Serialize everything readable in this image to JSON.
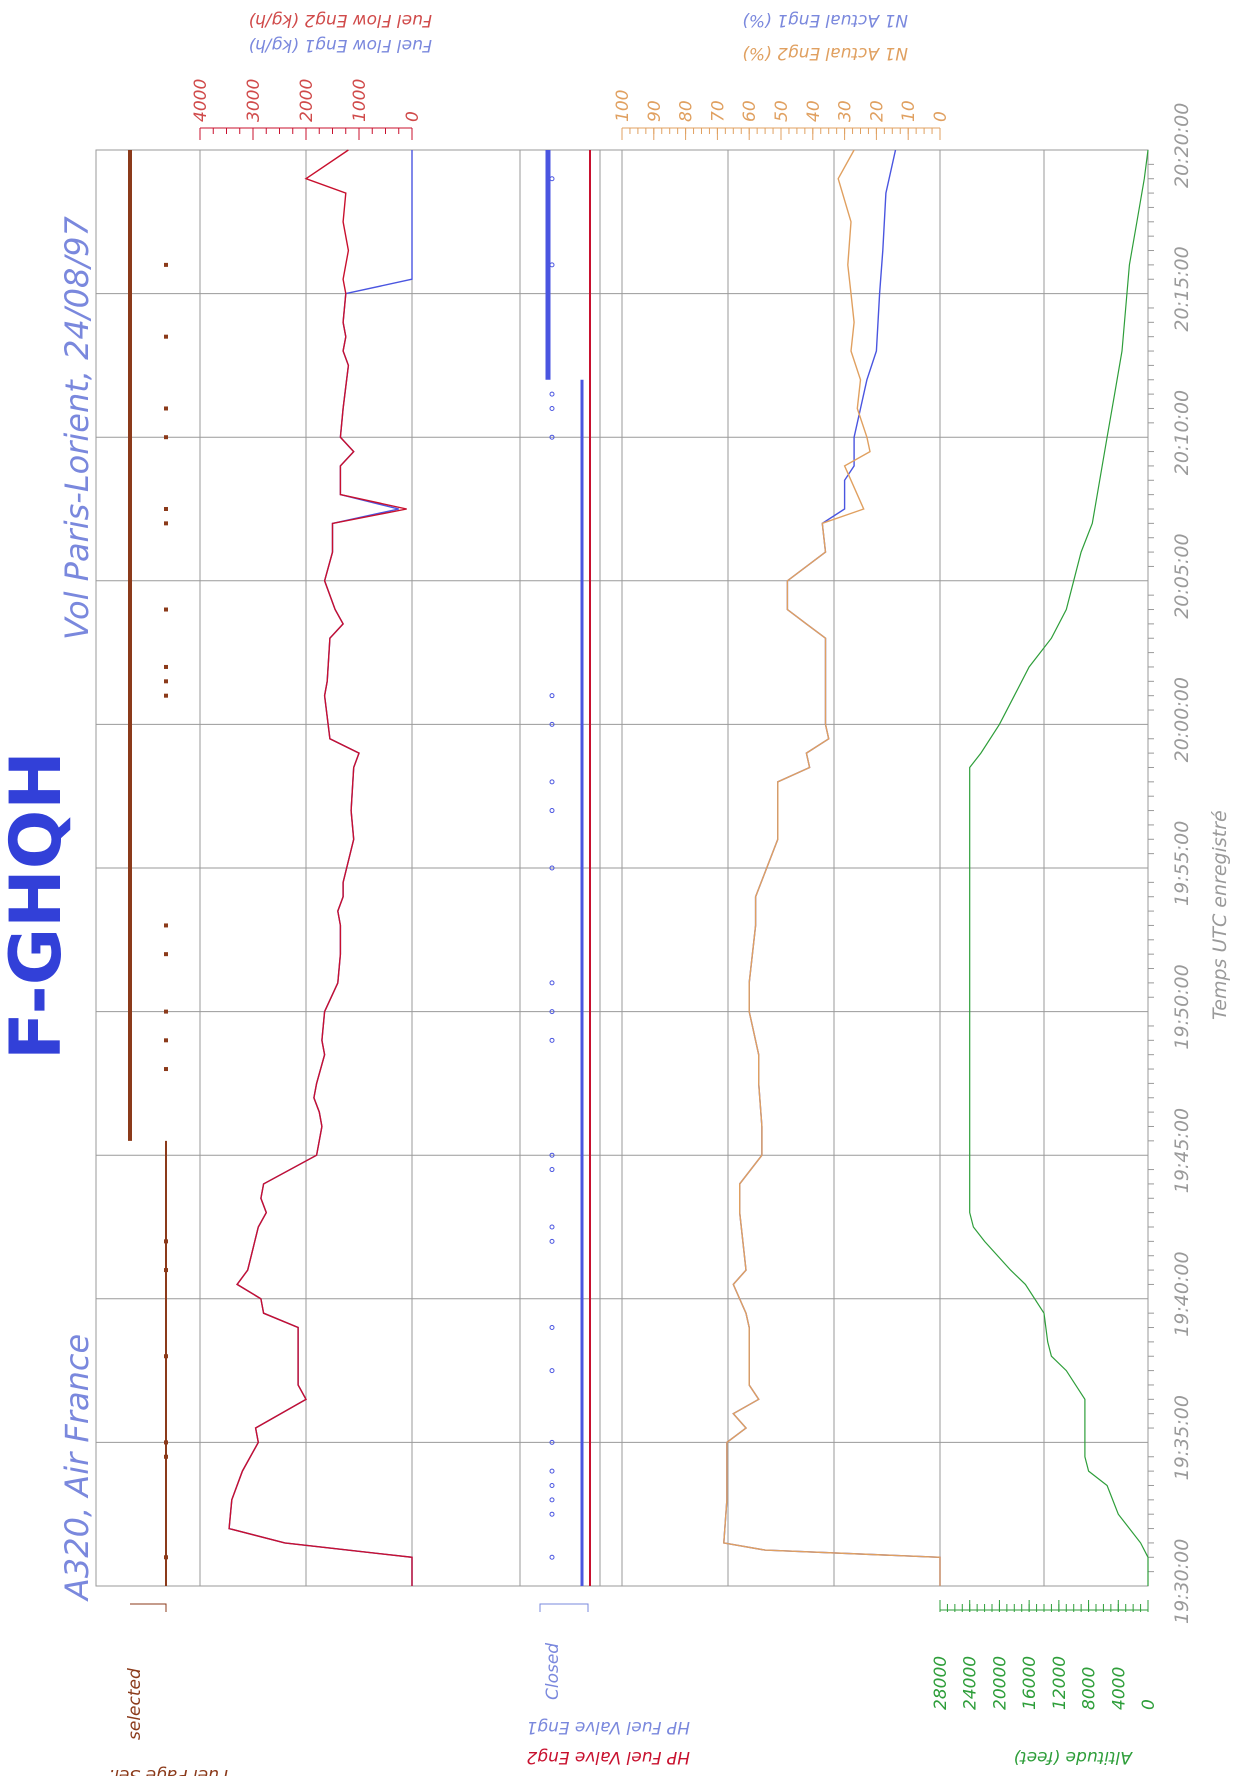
{
  "header": {
    "registration": "F-GHQH",
    "aircraft": "A320, Air France",
    "flight": "Vol Paris-Lorient, 24/08/97"
  },
  "colors": {
    "blue": "#4a55e0",
    "red": "#c8102e",
    "orange": "#e0a060",
    "brown": "#8b3a1a",
    "green": "#2e9e3a",
    "grid": "#9a9a9a",
    "axis_text_blue": "#7a88dd",
    "axis_text_red": "#d04a4a"
  },
  "chart_data": {
    "type": "line",
    "x_axis": {
      "label": "Temps UTC enregistré",
      "ticks": [
        "19:30:00",
        "19:35:00",
        "19:40:00",
        "19:45:00",
        "19:50:00",
        "19:55:00",
        "20:00:00",
        "20:05:00",
        "20:10:00",
        "20:15:00",
        "20:20:00"
      ]
    },
    "panels": {
      "fuel_page": {
        "labels": [
          "Fuel Page Sel.",
          "selected"
        ]
      },
      "fuel_flow": {
        "labels": [
          "Fuel Flow Eng1 (kg/h)",
          "Fuel Flow Eng2 (kg/h)"
        ],
        "ticks": [
          "4000",
          "3000",
          "2000",
          "1000",
          "0"
        ],
        "ylim": [
          0,
          4000
        ]
      },
      "hp_valve": {
        "labels": [
          "HP Fuel Valve Eng1",
          "HP Fuel Valve Eng2"
        ],
        "state_label": "Closed"
      },
      "n1": {
        "labels": [
          "N1 Actual Eng1 (%)",
          "N1 Actual Eng2 (%)"
        ],
        "ticks": [
          "100",
          "90",
          "80",
          "70",
          "60",
          "50",
          "40",
          "30",
          "20",
          "10",
          "0"
        ],
        "ylim": [
          0,
          100
        ]
      },
      "altitude": {
        "label": "Altitude (feet)",
        "ticks": [
          "28000",
          "24000",
          "20000",
          "16000",
          "12000",
          "8000",
          "4000",
          "0"
        ],
        "ylim": [
          0,
          28000
        ]
      }
    },
    "series": {
      "fuel_flow_eng1": [
        [
          0,
          0
        ],
        [
          2,
          0
        ],
        [
          3,
          2400
        ],
        [
          4,
          3450
        ],
        [
          6,
          3400
        ],
        [
          8,
          3200
        ],
        [
          10,
          2900
        ],
        [
          11,
          2950
        ],
        [
          13,
          2000
        ],
        [
          14,
          2150
        ],
        [
          18,
          2150
        ],
        [
          19,
          2800
        ],
        [
          20,
          2850
        ],
        [
          21,
          3300
        ],
        [
          22,
          3100
        ],
        [
          25,
          2900
        ],
        [
          26,
          2750
        ],
        [
          27,
          2850
        ],
        [
          28,
          2800
        ],
        [
          30,
          1800
        ],
        [
          32,
          1700
        ],
        [
          33,
          1750
        ],
        [
          34,
          1850
        ],
        [
          35,
          1800
        ],
        [
          37,
          1650
        ],
        [
          38,
          1700
        ],
        [
          40,
          1650
        ],
        [
          42,
          1400
        ],
        [
          44,
          1350
        ],
        [
          46,
          1350
        ],
        [
          47,
          1400
        ],
        [
          48,
          1300
        ],
        [
          49,
          1300
        ],
        [
          52,
          1100
        ],
        [
          54,
          1150
        ],
        [
          57,
          1100
        ],
        [
          58,
          1000
        ],
        [
          59,
          1550
        ],
        [
          62,
          1650
        ],
        [
          63,
          1600
        ],
        [
          66,
          1550
        ],
        [
          67,
          1300
        ],
        [
          68,
          1450
        ],
        [
          70,
          1650
        ],
        [
          72,
          1500
        ],
        [
          74,
          1500
        ],
        [
          75,
          250
        ],
        [
          76,
          1350
        ],
        [
          78,
          1350
        ],
        [
          79,
          1100
        ],
        [
          80,
          1350
        ],
        [
          82,
          1300
        ],
        [
          85,
          1200
        ],
        [
          86,
          1300
        ],
        [
          87,
          1250
        ],
        [
          88,
          1300
        ],
        [
          90,
          1250
        ],
        [
          91,
          0
        ],
        [
          100,
          0
        ]
      ],
      "fuel_flow_eng2": [
        [
          0,
          0
        ],
        [
          2,
          0
        ],
        [
          3,
          2400
        ],
        [
          4,
          3450
        ],
        [
          6,
          3400
        ],
        [
          8,
          3200
        ],
        [
          10,
          2900
        ],
        [
          11,
          2950
        ],
        [
          13,
          2000
        ],
        [
          14,
          2150
        ],
        [
          18,
          2150
        ],
        [
          19,
          2800
        ],
        [
          20,
          2850
        ],
        [
          21,
          3300
        ],
        [
          22,
          3100
        ],
        [
          25,
          2900
        ],
        [
          26,
          2750
        ],
        [
          27,
          2850
        ],
        [
          28,
          2800
        ],
        [
          30,
          1800
        ],
        [
          32,
          1700
        ],
        [
          33,
          1750
        ],
        [
          34,
          1850
        ],
        [
          35,
          1800
        ],
        [
          37,
          1650
        ],
        [
          38,
          1700
        ],
        [
          40,
          1650
        ],
        [
          42,
          1400
        ],
        [
          44,
          1350
        ],
        [
          46,
          1350
        ],
        [
          47,
          1400
        ],
        [
          48,
          1300
        ],
        [
          49,
          1300
        ],
        [
          52,
          1100
        ],
        [
          54,
          1150
        ],
        [
          57,
          1100
        ],
        [
          58,
          1000
        ],
        [
          59,
          1550
        ],
        [
          62,
          1650
        ],
        [
          63,
          1600
        ],
        [
          66,
          1550
        ],
        [
          67,
          1300
        ],
        [
          68,
          1450
        ],
        [
          70,
          1650
        ],
        [
          72,
          1500
        ],
        [
          74,
          1500
        ],
        [
          75,
          100
        ],
        [
          76,
          1350
        ],
        [
          78,
          1350
        ],
        [
          79,
          1100
        ],
        [
          80,
          1350
        ],
        [
          82,
          1300
        ],
        [
          85,
          1200
        ],
        [
          86,
          1300
        ],
        [
          87,
          1250
        ],
        [
          88,
          1300
        ],
        [
          90,
          1250
        ],
        [
          91,
          1300
        ],
        [
          93,
          1200
        ],
        [
          95,
          1300
        ],
        [
          97,
          1250
        ],
        [
          98,
          2000
        ],
        [
          100,
          1200
        ]
      ],
      "n1_eng1": [
        [
          0,
          0
        ],
        [
          2,
          0
        ],
        [
          2.5,
          55
        ],
        [
          3,
          68
        ],
        [
          6,
          67
        ],
        [
          8,
          67
        ],
        [
          10,
          67
        ],
        [
          11,
          61
        ],
        [
          12,
          65
        ],
        [
          13,
          57
        ],
        [
          14,
          60
        ],
        [
          18,
          60
        ],
        [
          19,
          61
        ],
        [
          21,
          65
        ],
        [
          22,
          61
        ],
        [
          26,
          63
        ],
        [
          28,
          63
        ],
        [
          30,
          56
        ],
        [
          32,
          56
        ],
        [
          35,
          57
        ],
        [
          37,
          57
        ],
        [
          39,
          59
        ],
        [
          40,
          60
        ],
        [
          42,
          60
        ],
        [
          44,
          59
        ],
        [
          46,
          58
        ],
        [
          48,
          58
        ],
        [
          52,
          51
        ],
        [
          56,
          51
        ],
        [
          57,
          41
        ],
        [
          58,
          42
        ],
        [
          59,
          35
        ],
        [
          60,
          36
        ],
        [
          62,
          36
        ],
        [
          66,
          36
        ],
        [
          67,
          42
        ],
        [
          68,
          48
        ],
        [
          70,
          48
        ],
        [
          72,
          36
        ],
        [
          74,
          37
        ],
        [
          75,
          30
        ],
        [
          77,
          30
        ],
        [
          78,
          27
        ],
        [
          80,
          27
        ],
        [
          82,
          25
        ],
        [
          84,
          23
        ],
        [
          86,
          20
        ],
        [
          90,
          19
        ],
        [
          93,
          18
        ],
        [
          97,
          17
        ],
        [
          100,
          14
        ]
      ],
      "n1_eng2": [
        [
          0,
          0
        ],
        [
          2,
          0
        ],
        [
          2.5,
          55
        ],
        [
          3,
          68
        ],
        [
          6,
          67
        ],
        [
          8,
          67
        ],
        [
          10,
          67
        ],
        [
          11,
          61
        ],
        [
          12,
          65
        ],
        [
          13,
          57
        ],
        [
          14,
          60
        ],
        [
          18,
          60
        ],
        [
          19,
          61
        ],
        [
          21,
          65
        ],
        [
          22,
          61
        ],
        [
          26,
          63
        ],
        [
          28,
          63
        ],
        [
          30,
          56
        ],
        [
          32,
          56
        ],
        [
          35,
          57
        ],
        [
          37,
          57
        ],
        [
          39,
          59
        ],
        [
          40,
          60
        ],
        [
          42,
          60
        ],
        [
          44,
          59
        ],
        [
          46,
          58
        ],
        [
          48,
          58
        ],
        [
          52,
          51
        ],
        [
          56,
          51
        ],
        [
          57,
          41
        ],
        [
          58,
          42
        ],
        [
          59,
          35
        ],
        [
          60,
          36
        ],
        [
          62,
          36
        ],
        [
          66,
          36
        ],
        [
          67,
          42
        ],
        [
          68,
          48
        ],
        [
          70,
          48
        ],
        [
          72,
          36
        ],
        [
          74,
          37
        ],
        [
          75,
          24
        ],
        [
          77,
          28
        ],
        [
          78,
          30
        ],
        [
          79,
          22
        ],
        [
          80,
          23
        ],
        [
          82,
          26
        ],
        [
          84,
          25
        ],
        [
          86,
          28
        ],
        [
          88,
          27
        ],
        [
          90,
          28
        ],
        [
          92,
          29
        ],
        [
          95,
          28
        ],
        [
          98,
          32
        ],
        [
          100,
          27
        ]
      ],
      "altitude": [
        [
          0,
          0
        ],
        [
          2,
          0
        ],
        [
          3,
          1000
        ],
        [
          5,
          4000
        ],
        [
          7,
          5500
        ],
        [
          8,
          8000
        ],
        [
          9,
          8500
        ],
        [
          13,
          8500
        ],
        [
          15,
          11000
        ],
        [
          16,
          13000
        ],
        [
          17,
          13500
        ],
        [
          19,
          14000
        ],
        [
          21,
          16500
        ],
        [
          22,
          18500
        ],
        [
          24,
          22000
        ],
        [
          25,
          23500
        ],
        [
          26,
          24000
        ],
        [
          40,
          24000
        ],
        [
          57,
          24000
        ],
        [
          58,
          22500
        ],
        [
          60,
          20000
        ],
        [
          62,
          18000
        ],
        [
          64,
          16000
        ],
        [
          66,
          13000
        ],
        [
          68,
          11000
        ],
        [
          70,
          10000
        ],
        [
          72,
          9000
        ],
        [
          74,
          7500
        ],
        [
          77,
          6500
        ],
        [
          80,
          5500
        ],
        [
          83,
          4500
        ],
        [
          86,
          3500
        ],
        [
          89,
          3000
        ],
        [
          92,
          2500
        ],
        [
          95,
          1500
        ],
        [
          98,
          500
        ],
        [
          100,
          0
        ]
      ]
    }
  }
}
